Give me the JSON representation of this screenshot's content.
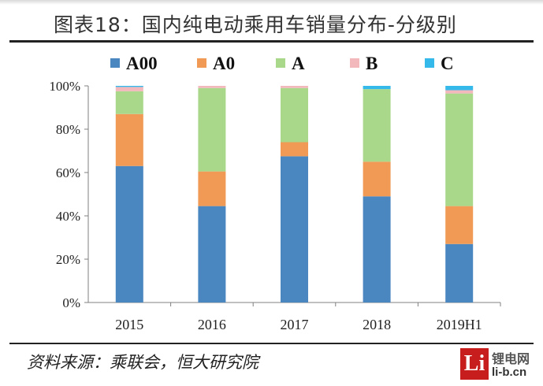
{
  "figure": {
    "title": "图表18：国内纯电动乘用车销量分布-分级别",
    "source": "资料来源：乘联会，恒大研究院"
  },
  "watermark": {
    "logo_text": "Li",
    "site_name": "锂电网",
    "url": "li-b.cn"
  },
  "chart_data": {
    "type": "bar",
    "stacked": true,
    "categories": [
      "2015",
      "2016",
      "2017",
      "2018",
      "2019H1"
    ],
    "series": [
      {
        "name": "A00",
        "color": "#4a86c0",
        "values": [
          63,
          44.5,
          67.5,
          49,
          27
        ]
      },
      {
        "name": "A0",
        "color": "#f09a55",
        "values": [
          24,
          16,
          6.5,
          16,
          17.5
        ]
      },
      {
        "name": "A",
        "color": "#a9d88a",
        "values": [
          10.5,
          38.5,
          25,
          33.5,
          52
        ]
      },
      {
        "name": "B",
        "color": "#f2b8bb",
        "values": [
          2,
          1,
          1,
          0,
          1.5
        ]
      },
      {
        "name": "C",
        "color": "#35b8ea",
        "values": [
          0.5,
          0,
          0,
          1.5,
          2
        ]
      }
    ],
    "y_ticks": [
      "0%",
      "20%",
      "40%",
      "60%",
      "80%",
      "100%"
    ],
    "ylim": [
      0,
      100
    ],
    "legend_position": "top",
    "grid": false
  }
}
